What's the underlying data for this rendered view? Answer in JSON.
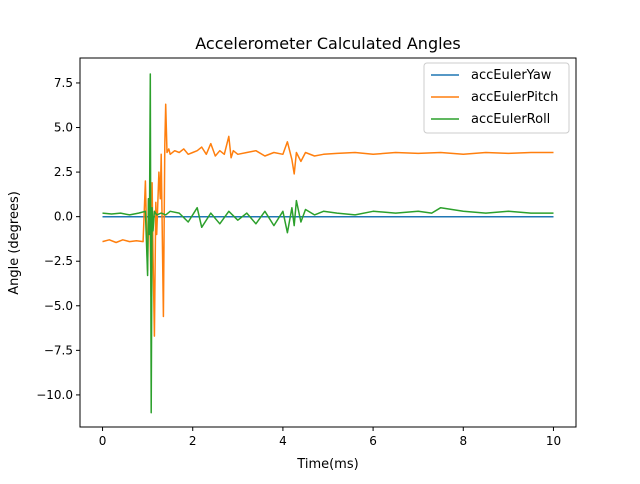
{
  "chart_data": {
    "type": "line",
    "title": "Accelerometer Calculated Angles",
    "xlabel": "Time(ms)",
    "ylabel": "Angle (degrees)",
    "xlim": [
      -0.5,
      10.5
    ],
    "ylim": [
      -11.8,
      8.9
    ],
    "xticks": [
      0,
      2,
      4,
      6,
      8,
      10
    ],
    "xtick_labels": [
      "0",
      "2",
      "4",
      "6",
      "8",
      "10"
    ],
    "yticks": [
      7.5,
      5.0,
      2.5,
      0.0,
      -2.5,
      -5.0,
      -7.5,
      -10.0
    ],
    "ytick_labels": [
      "7.5",
      "5.0",
      "2.5",
      "0.0",
      "−2.5",
      "−5.0",
      "−7.5",
      "−10.0"
    ],
    "grid": false,
    "legend_position": "top-right",
    "series": [
      {
        "name": "accEulerYaw",
        "color": "#1f77b4",
        "x": [
          0,
          10
        ],
        "y": [
          0,
          0
        ]
      },
      {
        "name": "accEulerPitch",
        "color": "#ff7f0e",
        "x": [
          0,
          0.15,
          0.3,
          0.45,
          0.6,
          0.75,
          0.9,
          0.95,
          0.98,
          1.0,
          1.02,
          1.05,
          1.08,
          1.1,
          1.12,
          1.15,
          1.18,
          1.2,
          1.25,
          1.28,
          1.3,
          1.35,
          1.38,
          1.4,
          1.43,
          1.47,
          1.5,
          1.6,
          1.7,
          1.8,
          1.9,
          2.0,
          2.1,
          2.2,
          2.3,
          2.4,
          2.5,
          2.6,
          2.7,
          2.8,
          2.85,
          2.9,
          3.0,
          3.2,
          3.4,
          3.6,
          3.8,
          4.0,
          4.1,
          4.2,
          4.25,
          4.3,
          4.4,
          4.5,
          4.7,
          4.9,
          5.2,
          5.6,
          6.0,
          6.5,
          7.0,
          7.5,
          8.0,
          8.5,
          9.0,
          9.5,
          10.0
        ],
        "y": [
          -1.4,
          -1.3,
          -1.45,
          -1.3,
          -1.4,
          -1.35,
          -1.4,
          2.0,
          -1.2,
          -3.0,
          1.0,
          -0.5,
          -4.5,
          1.9,
          -2.0,
          -6.7,
          0.8,
          -1.0,
          2.5,
          1.0,
          3.5,
          -5.6,
          4.0,
          6.3,
          3.6,
          3.8,
          3.5,
          3.7,
          3.6,
          3.8,
          3.5,
          3.6,
          3.7,
          3.9,
          3.5,
          4.1,
          3.4,
          3.7,
          3.5,
          4.5,
          3.3,
          3.7,
          3.5,
          3.6,
          3.7,
          3.4,
          3.6,
          3.5,
          4.2,
          3.2,
          2.4,
          3.6,
          3.1,
          3.6,
          3.4,
          3.5,
          3.55,
          3.6,
          3.5,
          3.6,
          3.55,
          3.6,
          3.5,
          3.6,
          3.55,
          3.6,
          3.6
        ]
      },
      {
        "name": "accEulerRoll",
        "color": "#2ca02c",
        "x": [
          0,
          0.2,
          0.4,
          0.6,
          0.8,
          0.95,
          1.0,
          1.02,
          1.04,
          1.06,
          1.08,
          1.1,
          1.12,
          1.15,
          1.2,
          1.3,
          1.4,
          1.5,
          1.7,
          1.9,
          2.1,
          2.2,
          2.4,
          2.6,
          2.8,
          3.0,
          3.2,
          3.4,
          3.6,
          3.8,
          4.0,
          4.1,
          4.2,
          4.25,
          4.3,
          4.4,
          4.5,
          4.7,
          4.9,
          5.2,
          5.6,
          6.0,
          6.5,
          7.0,
          7.3,
          7.5,
          8.0,
          8.5,
          9.0,
          9.5,
          10.0
        ],
        "y": [
          0.2,
          0.15,
          0.2,
          0.1,
          0.2,
          0.3,
          -3.3,
          1.0,
          -1.0,
          8.0,
          -11.0,
          0.5,
          -0.8,
          0.3,
          0.1,
          0.2,
          0.1,
          0.3,
          0.2,
          -0.3,
          0.5,
          -0.6,
          0.2,
          -0.4,
          0.3,
          -0.2,
          0.2,
          -0.4,
          0.3,
          -0.5,
          0.3,
          -0.9,
          0.5,
          -0.5,
          0.9,
          -0.3,
          0.4,
          0.1,
          0.3,
          0.2,
          0.1,
          0.3,
          0.2,
          0.3,
          0.2,
          0.5,
          0.3,
          0.2,
          0.3,
          0.2,
          0.2
        ]
      }
    ]
  }
}
